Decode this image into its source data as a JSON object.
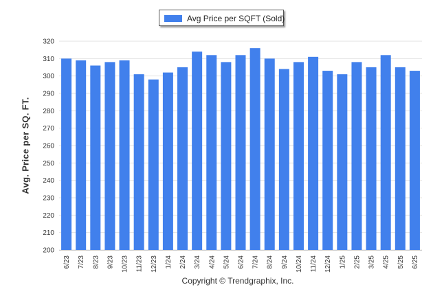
{
  "chart_data": {
    "type": "bar",
    "categories": [
      "6/23",
      "7/23",
      "8/23",
      "9/23",
      "10/23",
      "11/23",
      "12/23",
      "1/24",
      "2/24",
      "3/24",
      "4/24",
      "5/24",
      "6/24",
      "7/24",
      "8/24",
      "9/24",
      "10/24",
      "11/24",
      "12/24",
      "1/25",
      "2/25",
      "3/25",
      "4/25",
      "5/25",
      "6/25"
    ],
    "series": [
      {
        "name": "Avg Price per SQFT (Sold)",
        "color": "#4180ec",
        "values": [
          310,
          309,
          306,
          308,
          309,
          301,
          298,
          302,
          305,
          314,
          312,
          308,
          312,
          316,
          310,
          304,
          308,
          311,
          303,
          301,
          308,
          305,
          312,
          305,
          303
        ]
      }
    ],
    "title": "",
    "xlabel": "",
    "ylabel": "Avg. Price per SQ. FT.",
    "ylim": [
      200,
      320
    ],
    "yticks": [
      200,
      210,
      220,
      230,
      240,
      250,
      260,
      270,
      280,
      290,
      300,
      310,
      320
    ],
    "grid": true,
    "legend_position": "top-center"
  },
  "footer": {
    "copyright": "Copyright © Trendgraphix, Inc."
  }
}
